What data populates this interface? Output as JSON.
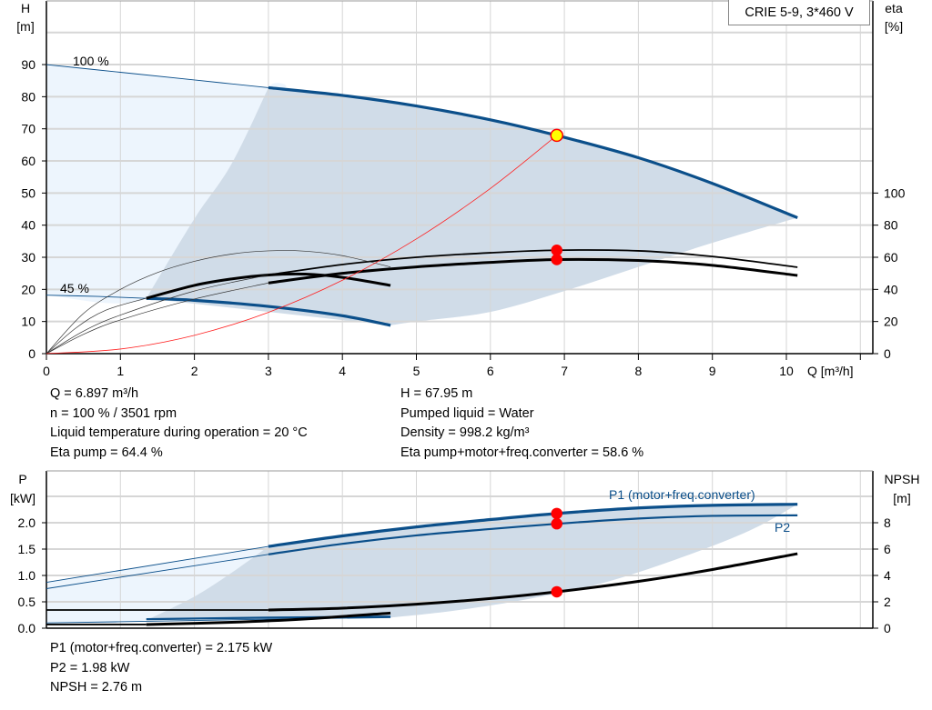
{
  "pump_name": "CRIE 5-9, 3*460 V",
  "colors": {
    "curve_blue": "#0b4f8a",
    "efficiency_black": "#000000",
    "system_red": "#ff2020",
    "area_dark": "#d0dce8",
    "area_light": "#edf5fd",
    "grid": "#d6d6d6",
    "duty_point_fill": "#ffff00",
    "marker_red": "#ff0000"
  },
  "duty_info_left": [
    "Q = 6.897 m³/h",
    "n = 100 % / 3501 rpm",
    "Liquid temperature during operation = 20 °C",
    "Eta pump = 64.4 %"
  ],
  "duty_info_right": [
    "H = 67.95 m",
    "Pumped liquid = Water",
    "Density = 998.2 kg/m³",
    "Eta pump+motor+freq.converter = 58.6 %"
  ],
  "power_info": [
    "P1 (motor+freq.converter) = 2.175 kW",
    "P2 = 1.98 kW",
    "NPSH = 2.76 m"
  ],
  "chart_data": [
    {
      "type": "line",
      "title": "",
      "xlabel": "Q [m³/h]",
      "ylabel_left": [
        "H",
        "[m]"
      ],
      "ylabel_right": [
        "eta",
        "[%]"
      ],
      "xlim": [
        0,
        11.1
      ],
      "ylim_left": [
        0,
        100
      ],
      "ylim_right": [
        0,
        200
      ],
      "x_ticks": [
        0,
        1,
        2,
        3,
        4,
        5,
        6,
        7,
        8,
        9,
        10
      ],
      "y_ticks_left": [
        0,
        10,
        20,
        30,
        40,
        50,
        60,
        70,
        80,
        90
      ],
      "y_ticks_right": [
        0,
        20,
        40,
        60,
        80,
        100
      ],
      "grid": true,
      "curve_labels": [
        "100 %",
        "45 %"
      ],
      "series": [
        {
          "id": "h_100",
          "axis": "left",
          "style": "thick-blue",
          "x": [
            3,
            4,
            5,
            6,
            6.897,
            8,
            9,
            10.15
          ],
          "y": [
            82.8,
            80.4,
            77.1,
            72.8,
            67.95,
            61,
            53,
            42.3
          ]
        },
        {
          "id": "h_100_ext",
          "axis": "left",
          "style": "thin-blue",
          "x": [
            0,
            1,
            2,
            3
          ],
          "y": [
            90,
            87.6,
            85.2,
            82.8
          ]
        },
        {
          "id": "h_45",
          "axis": "left",
          "style": "thick-blue",
          "x": [
            1.35,
            2,
            3,
            4,
            4.65
          ],
          "y": [
            17.2,
            16.6,
            14.7,
            11.8,
            8.8
          ]
        },
        {
          "id": "h_45_ext",
          "axis": "left",
          "style": "thin-blue",
          "x": [
            0,
            0.7,
            1.35
          ],
          "y": [
            18.2,
            17.8,
            17.2
          ]
        },
        {
          "id": "eta_pump_100",
          "axis": "right",
          "style": "thin-black",
          "x": [
            3,
            4,
            5,
            6,
            6.897,
            8,
            9,
            10.15
          ],
          "y": [
            49,
            55.5,
            60,
            62.8,
            64.4,
            64,
            60.5,
            53.8
          ]
        },
        {
          "id": "eta_total_100",
          "axis": "right",
          "style": "thick-black",
          "x": [
            3,
            4,
            5,
            6,
            6.897,
            8,
            9,
            10.15
          ],
          "y": [
            44,
            50,
            54,
            56.8,
            58.6,
            58,
            55,
            48.7
          ]
        },
        {
          "id": "eta_45",
          "axis": "right",
          "style": "thick-black",
          "x": [
            1.35,
            2,
            2.5,
            3,
            3.5,
            4,
            4.65
          ],
          "y": [
            34.5,
            42.5,
            46.5,
            49,
            49.5,
            47.5,
            42.5
          ]
        },
        {
          "id": "eta_pump_ext",
          "axis": "right",
          "style": "hair-black",
          "x": [
            0,
            0.5,
            1,
            1.5,
            2,
            2.5,
            3,
            3.5,
            4,
            4.65
          ],
          "y": [
            0,
            25,
            40,
            50.5,
            57.5,
            62,
            64,
            63.8,
            61,
            54
          ]
        },
        {
          "id": "eta_ext_a",
          "axis": "right",
          "style": "hair-black",
          "x": [
            0,
            0.4,
            0.8,
            1.35
          ],
          "y": [
            0,
            16,
            27,
            34.5
          ]
        },
        {
          "id": "eta_ext_b",
          "axis": "right",
          "style": "hair-black",
          "x": [
            0,
            0.5,
            1,
            2,
            3
          ],
          "y": [
            0,
            14,
            24,
            39,
            49
          ]
        },
        {
          "id": "eta_ext_c",
          "axis": "right",
          "style": "hair-black",
          "x": [
            0,
            0.5,
            1,
            2,
            3
          ],
          "y": [
            0,
            12,
            21,
            34,
            44
          ]
        },
        {
          "id": "system_curve",
          "axis": "left",
          "style": "red",
          "x": [
            0,
            1,
            2,
            3,
            4,
            5,
            6,
            6.897
          ],
          "y": [
            0,
            1.43,
            5.71,
            12.86,
            22.85,
            35.71,
            51.43,
            67.95
          ]
        }
      ],
      "areas": {
        "light": {
          "x": [
            0,
            3,
            3,
            2.5,
            2,
            1.35,
            0
          ],
          "y": [
            90,
            82.8,
            82.8,
            59,
            42,
            17.2,
            18.2
          ]
        },
        "dark": {
          "upper_x": [
            1.35,
            2,
            2.5,
            3
          ],
          "upper_y": [
            17.2,
            42,
            59,
            82.8
          ],
          "lower_x": [
            4.65,
            5,
            6,
            7,
            8,
            9,
            10.15
          ],
          "lower_y": [
            8.8,
            10,
            13,
            19.5,
            27,
            34.5,
            42.3
          ]
        }
      },
      "markers": [
        {
          "id": "duty_point",
          "axis": "left",
          "x": 6.897,
          "y": 67.95,
          "fill": "#ffff00"
        },
        {
          "id": "eta_pump_point",
          "axis": "right",
          "x": 6.897,
          "y": 64.4,
          "fill": "#ff0000"
        },
        {
          "id": "eta_total_point",
          "axis": "right",
          "x": 6.897,
          "y": 58.6,
          "fill": "#ff0000"
        }
      ]
    },
    {
      "type": "line",
      "title": "",
      "ylabel_left": [
        "P",
        "[kW]"
      ],
      "ylabel_right": [
        "NPSH",
        "[m]"
      ],
      "xlim": [
        0,
        11.1
      ],
      "ylim_left": [
        0,
        2.5
      ],
      "ylim_right": [
        0,
        10
      ],
      "y_ticks_left": [
        "0.0",
        "0.5",
        "1.0",
        "1.5",
        "2.0"
      ],
      "y_ticks_right": [
        0,
        2,
        4,
        6,
        8
      ],
      "grid": true,
      "series": [
        {
          "id": "p1_100",
          "name": "P1 (motor+freq.converter)",
          "axis": "left",
          "style": "thick-blue",
          "x": [
            3,
            4,
            5,
            6,
            6.897,
            8,
            9,
            10.15
          ],
          "y": [
            1.55,
            1.75,
            1.92,
            2.06,
            2.175,
            2.28,
            2.33,
            2.35
          ]
        },
        {
          "id": "p1_ext",
          "axis": "left",
          "style": "thin-blue",
          "x": [
            0,
            3
          ],
          "y": [
            0.87,
            1.55
          ]
        },
        {
          "id": "p2_100",
          "name": "P2",
          "axis": "left",
          "style": "mid-blue",
          "x": [
            3,
            4,
            5,
            6,
            6.897,
            8,
            9,
            10.15
          ],
          "y": [
            1.4,
            1.6,
            1.76,
            1.88,
            1.98,
            2.08,
            2.13,
            2.14
          ]
        },
        {
          "id": "p2_ext",
          "axis": "left",
          "style": "thin-blue",
          "x": [
            0,
            3
          ],
          "y": [
            0.75,
            1.4
          ]
        },
        {
          "id": "p1_45",
          "axis": "left",
          "style": "mid-blue",
          "x": [
            1.35,
            3,
            4.65
          ],
          "y": [
            0.17,
            0.2,
            0.22
          ]
        },
        {
          "id": "p2_45",
          "axis": "left",
          "style": "thin-blue",
          "x": [
            0,
            1.35,
            3,
            4.65
          ],
          "y": [
            0.1,
            0.13,
            0.17,
            0.2
          ]
        },
        {
          "id": "npsh_100",
          "axis": "right",
          "style": "thick-black",
          "x": [
            3,
            4,
            5,
            6,
            6.897,
            8,
            9,
            10.15
          ],
          "y": [
            1.38,
            1.52,
            1.82,
            2.25,
            2.76,
            3.55,
            4.45,
            5.65
          ]
        },
        {
          "id": "npsh_ext",
          "axis": "right",
          "style": "thin-black",
          "x": [
            0,
            3
          ],
          "y": [
            1.38,
            1.38
          ]
        },
        {
          "id": "npsh_45",
          "axis": "right",
          "style": "thick-black",
          "x": [
            1.35,
            2.5,
            3.5,
            4.65
          ],
          "y": [
            0.28,
            0.45,
            0.7,
            1.15
          ]
        },
        {
          "id": "npsh_45_ext",
          "axis": "right",
          "style": "thin-black",
          "x": [
            0,
            1.35
          ],
          "y": [
            0.28,
            0.28
          ]
        }
      ],
      "areas": {
        "light": {
          "x": [
            0,
            3,
            3,
            2.5,
            2,
            1.35,
            0
          ],
          "y": [
            0.87,
            1.55,
            1.55,
            1.05,
            0.6,
            0.15,
            0.1
          ]
        },
        "dark": {
          "upper_x": [
            1.35,
            2,
            2.5,
            3
          ],
          "upper_y": [
            0.15,
            0.6,
            1.05,
            1.55
          ],
          "lower_x": [
            4.65,
            5.5,
            6.5,
            7.5,
            8.5,
            9.5,
            10.15
          ],
          "lower_y": [
            0.2,
            0.33,
            0.55,
            0.85,
            1.3,
            1.85,
            2.35
          ]
        }
      },
      "markers": [
        {
          "id": "p1_point",
          "axis": "left",
          "x": 6.897,
          "y": 2.175,
          "fill": "#ff0000"
        },
        {
          "id": "p2_point",
          "axis": "left",
          "x": 6.897,
          "y": 1.98,
          "fill": "#ff0000"
        },
        {
          "id": "npsh_point",
          "axis": "right",
          "x": 6.897,
          "y": 2.76,
          "fill": "#ff0000"
        }
      ]
    }
  ]
}
